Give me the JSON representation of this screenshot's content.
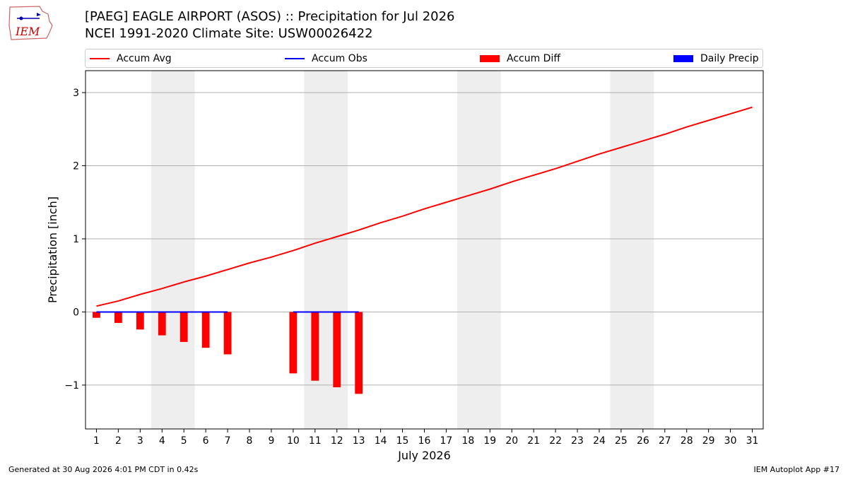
{
  "title_line1": "[PAEG] EAGLE AIRPORT (ASOS) :: Precipitation for Jul 2026",
  "title_line2": "NCEI 1991-2020 Climate Site: USW00026422",
  "logo_text": "IEM",
  "footer_left": "Generated at 30 Aug 2026 4:01 PM CDT in 0.42s",
  "footer_right": "IEM Autoplot App #17",
  "legend": [
    {
      "label": "Accum Avg",
      "kind": "line",
      "color": "#ff0000"
    },
    {
      "label": "Accum Obs",
      "kind": "line",
      "color": "#0000ff"
    },
    {
      "label": "Accum Diff",
      "kind": "box",
      "color": "#ff0000"
    },
    {
      "label": "Daily Precip",
      "kind": "box",
      "color": "#0000ff"
    }
  ],
  "chart_data": {
    "type": "bar",
    "xlabel": "July 2026",
    "ylabel": "Precipitation [inch]",
    "xlim": [
      0.5,
      31.5
    ],
    "ylim": [
      -1.6,
      3.3
    ],
    "yticks": [
      -1,
      0,
      1,
      2,
      3
    ],
    "ytick_labels": [
      "−1",
      "0",
      "1",
      "2",
      "3"
    ],
    "xticks": [
      1,
      2,
      3,
      4,
      5,
      6,
      7,
      8,
      9,
      10,
      11,
      12,
      13,
      14,
      15,
      16,
      17,
      18,
      19,
      20,
      21,
      22,
      23,
      24,
      25,
      26,
      27,
      28,
      29,
      30,
      31
    ],
    "grid": "horizontal",
    "weekend_shading": [
      [
        3.5,
        5.5
      ],
      [
        10.5,
        12.5
      ],
      [
        17.5,
        19.5
      ],
      [
        24.5,
        26.5
      ]
    ],
    "series": [
      {
        "name": "Accum Avg",
        "kind": "line",
        "color": "#ff0000",
        "x": [
          1,
          2,
          3,
          4,
          5,
          6,
          7,
          8,
          9,
          10,
          11,
          12,
          13,
          14,
          15,
          16,
          17,
          18,
          19,
          20,
          21,
          22,
          23,
          24,
          25,
          26,
          27,
          28,
          29,
          30,
          31
        ],
        "values": [
          0.08,
          0.15,
          0.24,
          0.32,
          0.41,
          0.49,
          0.58,
          0.67,
          0.75,
          0.84,
          0.94,
          1.03,
          1.12,
          1.22,
          1.31,
          1.41,
          1.5,
          1.59,
          1.68,
          1.78,
          1.87,
          1.96,
          2.06,
          2.16,
          2.25,
          2.34,
          2.43,
          2.53,
          2.62,
          2.71,
          2.8
        ]
      },
      {
        "name": "Accum Obs",
        "kind": "line",
        "color": "#0000ff",
        "segments": [
          {
            "x": [
              1,
              2,
              3,
              4,
              5,
              6,
              7
            ],
            "values": [
              0,
              0,
              0,
              0,
              0,
              0,
              0
            ]
          },
          {
            "x": [
              10,
              11,
              12,
              13
            ],
            "values": [
              0,
              0,
              0,
              0
            ]
          }
        ]
      },
      {
        "name": "Accum Diff",
        "kind": "bar",
        "color": "#ff0000",
        "x": [
          1,
          2,
          3,
          4,
          5,
          6,
          7,
          10,
          11,
          12,
          13
        ],
        "values": [
          -0.08,
          -0.15,
          -0.24,
          -0.32,
          -0.41,
          -0.49,
          -0.58,
          -0.84,
          -0.94,
          -1.03,
          -1.12
        ]
      },
      {
        "name": "Daily Precip",
        "kind": "bar",
        "color": "#0000ff",
        "x": [],
        "values": []
      }
    ]
  }
}
